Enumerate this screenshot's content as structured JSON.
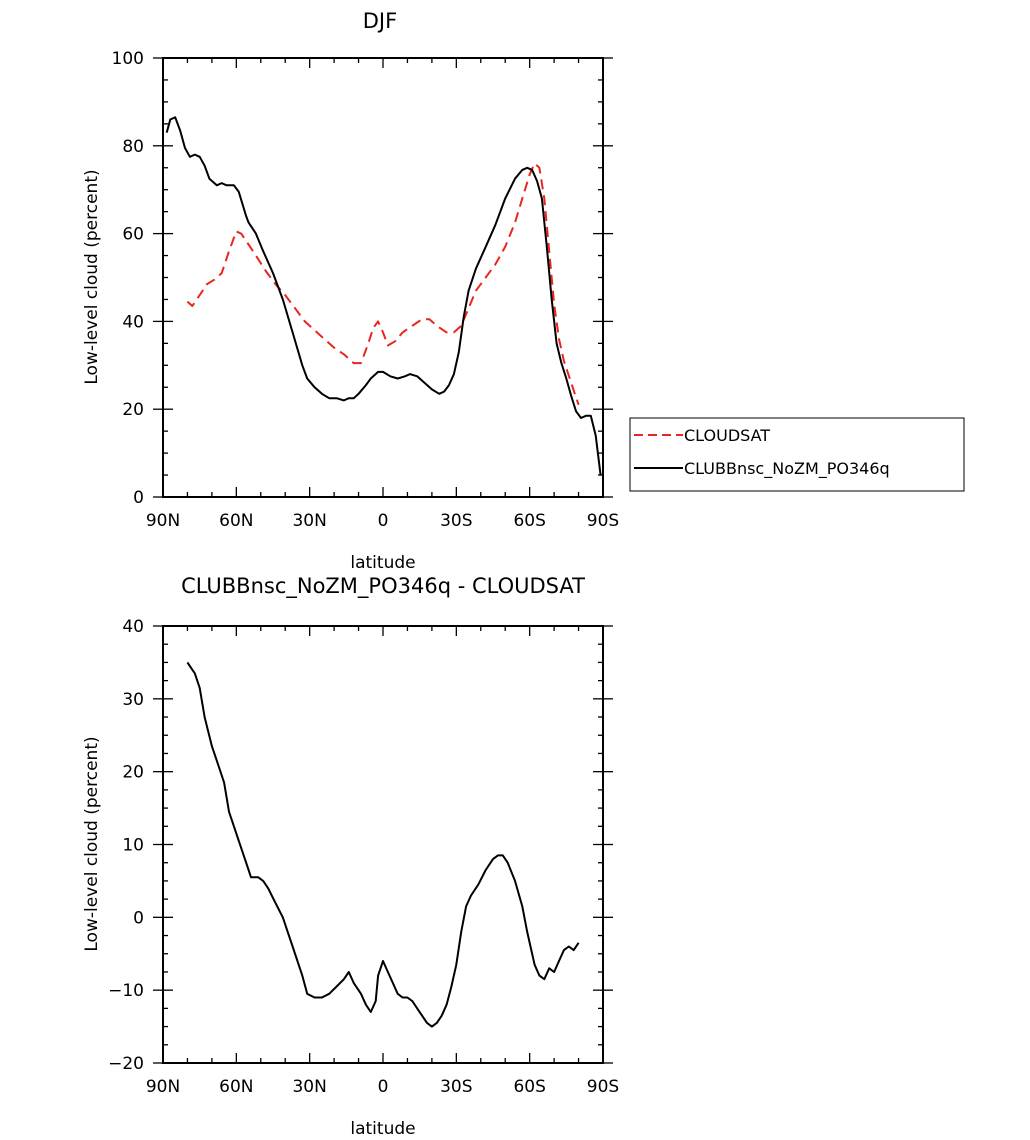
{
  "chart_data": [
    {
      "type": "line",
      "title": "DJF",
      "xlabel": "latitude",
      "ylabel": "Low-level cloud (percent)",
      "xlim": [
        90,
        -90
      ],
      "ylim": [
        0,
        100
      ],
      "x_ticks": [
        {
          "value": 90,
          "label": "90N"
        },
        {
          "value": 60,
          "label": "60N"
        },
        {
          "value": 30,
          "label": "30N"
        },
        {
          "value": 0,
          "label": "0"
        },
        {
          "value": -30,
          "label": "30S"
        },
        {
          "value": -60,
          "label": "60S"
        },
        {
          "value": -90,
          "label": "90S"
        }
      ],
      "y_ticks": [
        0,
        20,
        40,
        60,
        80,
        100
      ],
      "grid": false,
      "legend": "right",
      "series": [
        {
          "name": "CLOUDSAT",
          "color": "#e8261e",
          "dash": "dashed",
          "points": [
            [
              80,
              44.5
            ],
            [
              78,
              43.5
            ],
            [
              75,
              46.0
            ],
            [
              72,
              48.5
            ],
            [
              69,
              49.5
            ],
            [
              66,
              51.0
            ],
            [
              63,
              56.0
            ],
            [
              60,
              60.5
            ],
            [
              58,
              60.0
            ],
            [
              55,
              57.5
            ],
            [
              52,
              55.0
            ],
            [
              48,
              51.5
            ],
            [
              44,
              48.5
            ],
            [
              40,
              46.0
            ],
            [
              36,
              43.0
            ],
            [
              32,
              40.0
            ],
            [
              28,
              38.0
            ],
            [
              24,
              36.0
            ],
            [
              20,
              34.0
            ],
            [
              16,
              32.5
            ],
            [
              12,
              30.5
            ],
            [
              9,
              30.5
            ],
            [
              6,
              35.0
            ],
            [
              4,
              38.5
            ],
            [
              2,
              40.0
            ],
            [
              0,
              37.5
            ],
            [
              -2,
              34.5
            ],
            [
              -5,
              35.5
            ],
            [
              -8,
              37.5
            ],
            [
              -12,
              39.0
            ],
            [
              -16,
              40.5
            ],
            [
              -19,
              40.5
            ],
            [
              -22,
              39.0
            ],
            [
              -26,
              37.5
            ],
            [
              -29,
              37.5
            ],
            [
              -32,
              39.0
            ],
            [
              -35,
              43.0
            ],
            [
              -38,
              47.0
            ],
            [
              -42,
              50.0
            ],
            [
              -46,
              53.0
            ],
            [
              -50,
              57.0
            ],
            [
              -54,
              62.5
            ],
            [
              -57,
              68.0
            ],
            [
              -60,
              73.5
            ],
            [
              -62,
              76.0
            ],
            [
              -64,
              75.0
            ],
            [
              -66,
              68.0
            ],
            [
              -68,
              56.0
            ],
            [
              -70,
              44.0
            ],
            [
              -72,
              36.0
            ],
            [
              -74,
              31.0
            ],
            [
              -77,
              26.0
            ],
            [
              -80,
              21.0
            ]
          ]
        },
        {
          "name": "CLUBBnsc_NoZM_PO346q",
          "color": "#000000",
          "dash": "solid",
          "points": [
            [
              88.5,
              83.0
            ],
            [
              87,
              86.0
            ],
            [
              85,
              86.5
            ],
            [
              83,
              83.5
            ],
            [
              81,
              79.5
            ],
            [
              79,
              77.5
            ],
            [
              77,
              78.0
            ],
            [
              75,
              77.5
            ],
            [
              73,
              75.5
            ],
            [
              71,
              72.5
            ],
            [
              68,
              71.0
            ],
            [
              66,
              71.5
            ],
            [
              64,
              71.0
            ],
            [
              61,
              71.0
            ],
            [
              59,
              69.5
            ],
            [
              56,
              64.0
            ],
            [
              55,
              62.5
            ],
            [
              52,
              60.0
            ],
            [
              49,
              56.0
            ],
            [
              45,
              51.0
            ],
            [
              41,
              45.0
            ],
            [
              37,
              37.5
            ],
            [
              33,
              30.0
            ],
            [
              31,
              27.0
            ],
            [
              28,
              25.0
            ],
            [
              25,
              23.5
            ],
            [
              22,
              22.5
            ],
            [
              19,
              22.5
            ],
            [
              16,
              22.0
            ],
            [
              14,
              22.5
            ],
            [
              12,
              22.5
            ],
            [
              10,
              23.5
            ],
            [
              7,
              25.5
            ],
            [
              5,
              27.0
            ],
            [
              2,
              28.5
            ],
            [
              0,
              28.5
            ],
            [
              -3,
              27.5
            ],
            [
              -6,
              27.0
            ],
            [
              -9,
              27.5
            ],
            [
              -11,
              28.0
            ],
            [
              -14,
              27.5
            ],
            [
              -17,
              26.0
            ],
            [
              -20,
              24.5
            ],
            [
              -23,
              23.5
            ],
            [
              -25,
              24.0
            ],
            [
              -27,
              25.5
            ],
            [
              -29,
              28.0
            ],
            [
              -31,
              33.0
            ],
            [
              -33,
              41.0
            ],
            [
              -35,
              47.0
            ],
            [
              -38,
              52.0
            ],
            [
              -42,
              57.0
            ],
            [
              -46,
              62.0
            ],
            [
              -50,
              68.0
            ],
            [
              -54,
              72.5
            ],
            [
              -57,
              74.5
            ],
            [
              -59,
              75.0
            ],
            [
              -61,
              74.5
            ],
            [
              -63,
              72.0
            ],
            [
              -65,
              68.0
            ],
            [
              -67,
              57.0
            ],
            [
              -69,
              45.0
            ],
            [
              -71,
              35.0
            ],
            [
              -73,
              30.5
            ],
            [
              -75,
              27.0
            ],
            [
              -77,
              23.0
            ],
            [
              -79,
              19.5
            ],
            [
              -81,
              18.0
            ],
            [
              -83,
              18.5
            ],
            [
              -85,
              18.5
            ],
            [
              -87,
              14.0
            ],
            [
              -89,
              5.0
            ]
          ]
        }
      ]
    },
    {
      "type": "line",
      "title": "CLUBBnsc_NoZM_PO346q - CLOUDSAT",
      "xlabel": "latitude",
      "ylabel": "Low-level cloud (percent)",
      "xlim": [
        90,
        -90
      ],
      "ylim": [
        -20,
        40
      ],
      "x_ticks": [
        {
          "value": 90,
          "label": "90N"
        },
        {
          "value": 60,
          "label": "60N"
        },
        {
          "value": 30,
          "label": "30N"
        },
        {
          "value": 0,
          "label": "0"
        },
        {
          "value": -30,
          "label": "30S"
        },
        {
          "value": -60,
          "label": "60S"
        },
        {
          "value": -90,
          "label": "90S"
        }
      ],
      "y_ticks": [
        -20,
        -10,
        0,
        10,
        20,
        30,
        40
      ],
      "grid": false,
      "series": [
        {
          "color": "#000000",
          "dash": "solid",
          "points": [
            [
              80,
              35.0
            ],
            [
              78,
              34.0
            ],
            [
              77,
              33.5
            ],
            [
              75,
              31.5
            ],
            [
              73,
              27.5
            ],
            [
              70,
              23.5
            ],
            [
              68,
              21.5
            ],
            [
              66,
              19.5
            ],
            [
              65,
              18.5
            ],
            [
              63,
              14.5
            ],
            [
              61,
              12.5
            ],
            [
              59,
              10.5
            ],
            [
              57,
              8.5
            ],
            [
              55,
              6.5
            ],
            [
              54,
              5.5
            ],
            [
              51,
              5.5
            ],
            [
              49,
              5.0
            ],
            [
              47,
              4.0
            ],
            [
              44,
              2.0
            ],
            [
              41,
              0.0
            ],
            [
              37,
              -4.0
            ],
            [
              33,
              -8.0
            ],
            [
              31,
              -10.5
            ],
            [
              28,
              -11.0
            ],
            [
              25,
              -11.0
            ],
            [
              22,
              -10.5
            ],
            [
              19,
              -9.5
            ],
            [
              16,
              -8.5
            ],
            [
              14,
              -7.5
            ],
            [
              12,
              -9.0
            ],
            [
              9,
              -10.5
            ],
            [
              7,
              -12.0
            ],
            [
              5,
              -13.0
            ],
            [
              3,
              -11.5
            ],
            [
              2,
              -8.0
            ],
            [
              0,
              -6.0
            ],
            [
              -2,
              -7.5
            ],
            [
              -4,
              -9.0
            ],
            [
              -6,
              -10.5
            ],
            [
              -8,
              -11.0
            ],
            [
              -10,
              -11.0
            ],
            [
              -12,
              -11.5
            ],
            [
              -14,
              -12.5
            ],
            [
              -16,
              -13.5
            ],
            [
              -18,
              -14.5
            ],
            [
              -20,
              -15.0
            ],
            [
              -22,
              -14.5
            ],
            [
              -24,
              -13.5
            ],
            [
              -26,
              -12.0
            ],
            [
              -28,
              -9.5
            ],
            [
              -30,
              -6.5
            ],
            [
              -32,
              -2.0
            ],
            [
              -34,
              1.5
            ],
            [
              -36,
              3.0
            ],
            [
              -39,
              4.5
            ],
            [
              -42,
              6.5
            ],
            [
              -45,
              8.0
            ],
            [
              -47,
              8.5
            ],
            [
              -49,
              8.5
            ],
            [
              -51,
              7.5
            ],
            [
              -54,
              5.0
            ],
            [
              -57,
              1.5
            ],
            [
              -59,
              -2.0
            ],
            [
              -62,
              -6.5
            ],
            [
              -64,
              -8.0
            ],
            [
              -66,
              -8.5
            ],
            [
              -68,
              -7.0
            ],
            [
              -70,
              -7.5
            ],
            [
              -72,
              -6.0
            ],
            [
              -74,
              -4.5
            ],
            [
              -76,
              -4.0
            ],
            [
              -78,
              -4.5
            ],
            [
              -80,
              -3.5
            ]
          ]
        }
      ]
    }
  ]
}
